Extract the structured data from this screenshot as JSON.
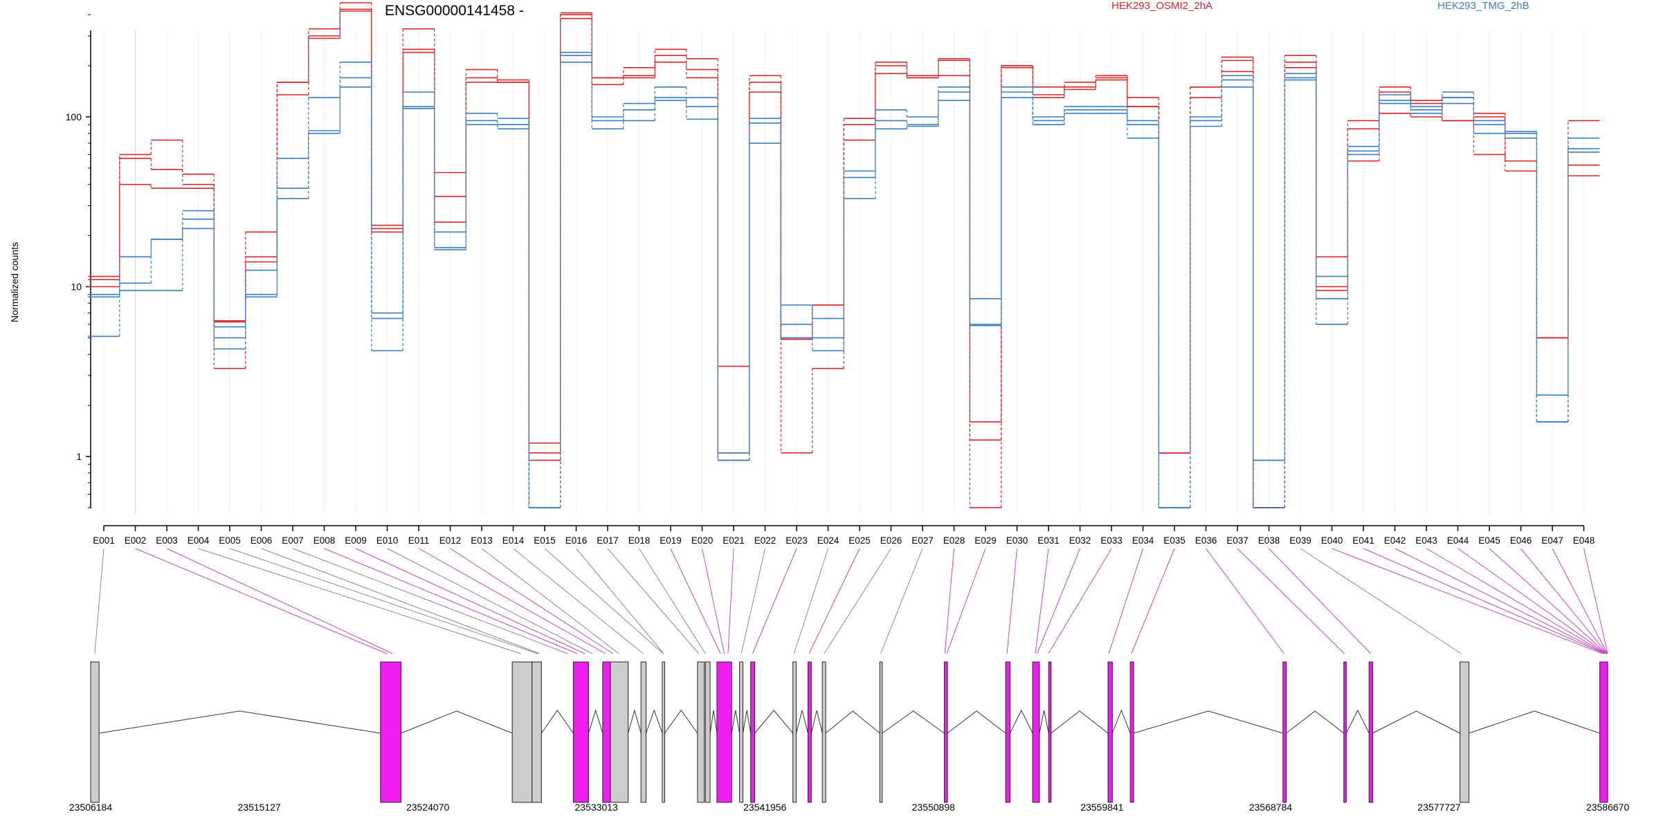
{
  "chart_data": {
    "type": "line",
    "title": "ENSG00000141458 -",
    "ylabel": "Normalized counts",
    "y_scale": "log",
    "y_ticks": [
      "1",
      "10",
      "100"
    ],
    "ylim": [
      0.5,
      600
    ],
    "exons": [
      "E001",
      "E002",
      "E003",
      "E004",
      "E005",
      "E006",
      "E007",
      "E008",
      "E009",
      "E010",
      "E011",
      "E012",
      "E013",
      "E014",
      "E015",
      "E016",
      "E017",
      "E018",
      "E019",
      "E020",
      "E021",
      "E022",
      "E023",
      "E024",
      "E025",
      "E026",
      "E027",
      "E028",
      "E029",
      "E030",
      "E031",
      "E032",
      "E033",
      "E034",
      "E035",
      "E036",
      "E037",
      "E038",
      "E039",
      "E040",
      "E041",
      "E042",
      "E043",
      "E044",
      "E045",
      "E046",
      "E047",
      "E048"
    ],
    "series": [
      {
        "name": "HEK293_OSMI2_2hA",
        "color": "#d62728",
        "replicates": [
          [
            11.5,
            57,
            49,
            40,
            6.3,
            15,
            160,
            330,
            470,
            23,
            330,
            47,
            190,
            160,
            1.2,
            410,
            170,
            195,
            250,
            220,
            3.4,
            175,
            1.05,
            3.3,
            98,
            210,
            175,
            220,
            1.6,
            200,
            150,
            160,
            175,
            130,
            1.05,
            150,
            225,
            0.5,
            230,
            15,
            95,
            150,
            125,
            130,
            105,
            55,
            5,
            95
          ],
          [
            11,
            60,
            73,
            46,
            6.2,
            21,
            160,
            300,
            430,
            22,
            250,
            34,
            170,
            165,
            1.05,
            400,
            170,
            175,
            230,
            190,
            1.05,
            160,
            5,
            7.8,
            90,
            200,
            170,
            215,
            1.25,
            200,
            135,
            150,
            170,
            115,
            1.05,
            150,
            215,
            0.5,
            210,
            10,
            85,
            140,
            120,
            95,
            100,
            55,
            5,
            52
          ],
          [
            10,
            40,
            38,
            38,
            3.3,
            14,
            135,
            290,
            420,
            21,
            240,
            24,
            160,
            160,
            0.95,
            380,
            155,
            170,
            210,
            170,
            0.95,
            140,
            4.9,
            7.8,
            73,
            180,
            170,
            175,
            0.5,
            195,
            130,
            145,
            165,
            115,
            1.05,
            130,
            185,
            0.5,
            195,
            9.5,
            55,
            105,
            100,
            95,
            60,
            48,
            5,
            45
          ]
        ]
      },
      {
        "name": "HEK293_TMG_2hB",
        "color": "#3a7ebf",
        "replicates": [
          [
            9,
            15,
            19,
            28,
            5.8,
            9,
            57,
            130,
            210,
            7,
            140,
            21,
            105,
            98,
            0.5,
            240,
            100,
            120,
            150,
            130,
            1.05,
            98,
            7.8,
            6.5,
            48,
            110,
            100,
            150,
            8.5,
            150,
            100,
            115,
            115,
            95,
            0.5,
            100,
            175,
            0.95,
            180,
            11.5,
            67,
            135,
            115,
            140,
            95,
            82,
            2.3,
            75
          ],
          [
            8.7,
            10.5,
            19,
            25,
            5,
            12.5,
            38,
            83,
            170,
            6.5,
            115,
            17,
            95,
            90,
            0.5,
            230,
            95,
            110,
            130,
            115,
            1.05,
            92,
            6,
            5,
            44,
            95,
            90,
            140,
            6,
            140,
            95,
            110,
            110,
            90,
            0.5,
            95,
            165,
            0.95,
            170,
            8.5,
            63,
            125,
            110,
            130,
            90,
            80,
            1.6,
            65
          ],
          [
            5.1,
            9.5,
            9.5,
            22,
            4.3,
            8.7,
            33,
            80,
            150,
            4.2,
            112,
            16.5,
            90,
            85,
            0.5,
            210,
            85,
            95,
            125,
            97,
            0.95,
            70,
            5,
            4.2,
            33,
            85,
            88,
            125,
            5.9,
            130,
            90,
            105,
            105,
            75,
            0.5,
            88,
            150,
            0.5,
            165,
            6,
            60,
            120,
            105,
            120,
            80,
            75,
            1.6,
            62
          ]
        ]
      }
    ]
  },
  "gene_model": {
    "coordinates": [
      "23506184",
      "23515127",
      "23524070",
      "23533013",
      "23541956",
      "23550898",
      "23559841",
      "23568784",
      "23577727",
      "23586670"
    ],
    "coord_range": [
      23506184,
      23586670
    ],
    "exon_blocks": [
      {
        "start": 23506184,
        "end": 23506630,
        "highlighted": false
      },
      {
        "start": 23521560,
        "end": 23522650,
        "highlighted": true
      },
      {
        "start": 23528550,
        "end": 23529600,
        "highlighted": false
      },
      {
        "start": 23529600,
        "end": 23530100,
        "highlighted": false
      },
      {
        "start": 23531790,
        "end": 23532600,
        "highlighted": true
      },
      {
        "start": 23533350,
        "end": 23533760,
        "highlighted": true
      },
      {
        "start": 23533760,
        "end": 23534700,
        "highlighted": false
      },
      {
        "start": 23535380,
        "end": 23535650,
        "highlighted": false
      },
      {
        "start": 23536510,
        "end": 23536640,
        "highlighted": false
      },
      {
        "start": 23538380,
        "end": 23538740,
        "highlighted": false
      },
      {
        "start": 23538800,
        "end": 23539050,
        "highlighted": false
      },
      {
        "start": 23539410,
        "end": 23540190,
        "highlighted": true
      },
      {
        "start": 23540610,
        "end": 23540790,
        "highlighted": false
      },
      {
        "start": 23541200,
        "end": 23541420,
        "highlighted": true
      },
      {
        "start": 23543440,
        "end": 23543620,
        "highlighted": false
      },
      {
        "start": 23544240,
        "end": 23544420,
        "highlighted": true
      },
      {
        "start": 23545000,
        "end": 23545180,
        "highlighted": false
      },
      {
        "start": 23548050,
        "end": 23548180,
        "highlighted": false
      },
      {
        "start": 23551470,
        "end": 23551640,
        "highlighted": true
      },
      {
        "start": 23554730,
        "end": 23554960,
        "highlighted": true
      },
      {
        "start": 23556160,
        "end": 23556520,
        "highlighted": true
      },
      {
        "start": 23557010,
        "end": 23557140,
        "highlighted": true
      },
      {
        "start": 23560160,
        "end": 23560390,
        "highlighted": true
      },
      {
        "start": 23561340,
        "end": 23561520,
        "highlighted": true
      },
      {
        "start": 23569440,
        "end": 23569620,
        "highlighted": true
      },
      {
        "start": 23572670,
        "end": 23572800,
        "highlighted": true
      },
      {
        "start": 23574010,
        "end": 23574200,
        "highlighted": true
      },
      {
        "start": 23578830,
        "end": 23579310,
        "highlighted": false
      },
      {
        "start": 23586250,
        "end": 23586670,
        "highlighted": true
      }
    ],
    "exon_mapping": [
      23506400,
      23521900,
      23522200,
      23529000,
      23529900,
      23530000,
      23531500,
      23532000,
      23532400,
      23532800,
      23533500,
      23533900,
      23534200,
      23535500,
      23536560,
      23536580,
      23538450,
      23538800,
      23539600,
      23539800,
      23540000,
      23540700,
      23541300,
      23543500,
      23544300,
      23545100,
      23548100,
      23551500,
      23551600,
      23554800,
      23556300,
      23556400,
      23557000,
      23560200,
      23561400,
      23569500,
      23572700,
      23574100,
      23578900,
      23586400,
      23586500,
      23586550,
      23586580,
      23586600,
      23586620,
      23586640,
      23586650,
      23586670
    ],
    "highlight_color": "#ee1fee"
  }
}
